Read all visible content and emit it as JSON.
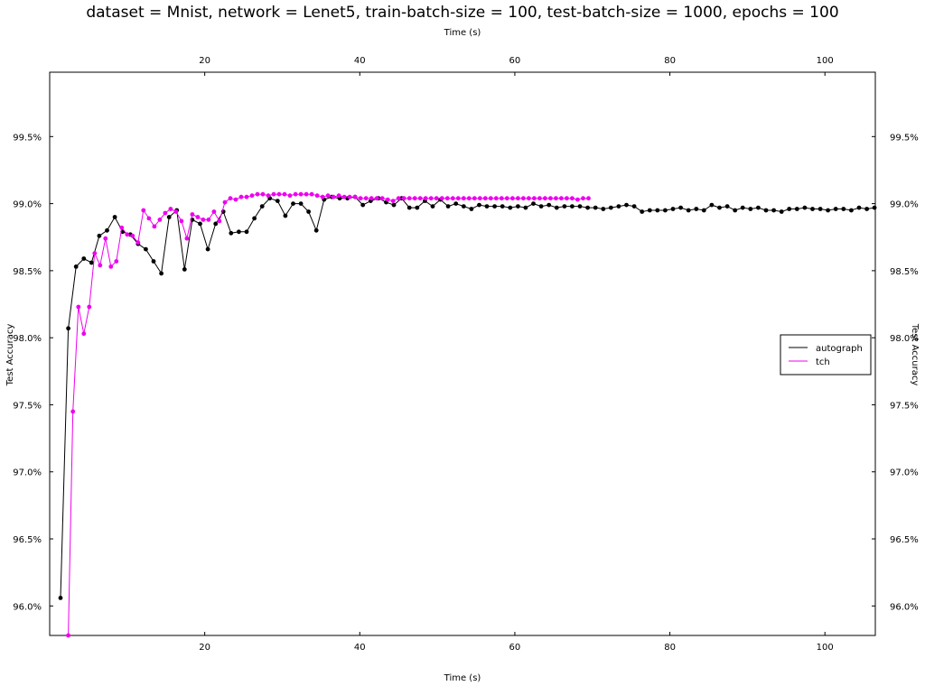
{
  "chart_data": {
    "type": "line",
    "title": "dataset = Mnist, network = Lenet5, train-batch-size = 100, test-batch-size = 1000, epochs = 100",
    "xlabel": "Time (s)",
    "ylabel": "Test Accuracy",
    "xlim": [
      0,
      106.5
    ],
    "ylim": [
      95.78,
      99.98
    ],
    "x_ticks": [
      20,
      40,
      60,
      80,
      100
    ],
    "y_ticks": [
      96.0,
      96.5,
      97.0,
      97.5,
      98.0,
      98.5,
      99.0,
      99.5
    ],
    "y_tick_labels": [
      "96.0%",
      "96.5%",
      "97.0%",
      "97.5%",
      "98.0%",
      "98.5%",
      "99.0%",
      "99.5%"
    ],
    "x_tick_labels": [
      "20",
      "40",
      "60",
      "80",
      "100"
    ],
    "grid": false,
    "legend_position": "right",
    "series": [
      {
        "name": "autograph",
        "color": "#000000",
        "x": [
          1.4,
          2.4,
          3.4,
          4.4,
          5.4,
          6.4,
          7.4,
          8.4,
          9.4,
          10.4,
          11.4,
          12.4,
          13.4,
          14.4,
          15.4,
          16.4,
          17.4,
          18.4,
          19.4,
          20.4,
          21.4,
          22.4,
          23.4,
          24.4,
          25.4,
          26.4,
          27.4,
          28.4,
          29.4,
          30.4,
          31.4,
          32.4,
          33.4,
          34.4,
          35.4,
          36.4,
          37.4,
          38.4,
          39.4,
          40.4,
          41.4,
          42.4,
          43.4,
          44.4,
          45.4,
          46.4,
          47.4,
          48.4,
          49.4,
          50.4,
          51.4,
          52.4,
          53.4,
          54.4,
          55.4,
          56.4,
          57.4,
          58.4,
          59.4,
          60.4,
          61.4,
          62.4,
          63.4,
          64.4,
          65.4,
          66.4,
          67.4,
          68.4,
          69.4,
          70.4,
          71.4,
          72.4,
          73.4,
          74.4,
          75.4,
          76.4,
          77.4,
          78.4,
          79.4,
          80.4,
          81.4,
          82.4,
          83.4,
          84.4,
          85.4,
          86.4,
          87.4,
          88.4,
          89.4,
          90.4,
          91.4,
          92.4,
          93.4,
          94.4,
          95.4,
          96.4,
          97.4,
          98.4,
          99.4,
          100.4,
          101.4,
          102.4,
          103.4,
          104.4,
          105.4,
          106.4
        ],
        "y": [
          96.06,
          98.07,
          98.53,
          98.59,
          98.56,
          98.76,
          98.8,
          98.9,
          98.79,
          98.77,
          98.7,
          98.66,
          98.57,
          98.48,
          98.9,
          98.95,
          98.51,
          98.88,
          98.85,
          98.66,
          98.85,
          98.94,
          98.78,
          98.79,
          98.79,
          98.89,
          98.98,
          99.04,
          99.02,
          98.91,
          99.0,
          99.0,
          98.94,
          98.8,
          99.03,
          99.05,
          99.04,
          99.04,
          99.05,
          98.99,
          99.02,
          99.04,
          99.01,
          98.99,
          99.04,
          98.97,
          98.97,
          99.02,
          98.98,
          99.03,
          98.98,
          99.0,
          98.98,
          98.96,
          98.99,
          98.98,
          98.98,
          98.98,
          98.97,
          98.98,
          98.97,
          99.0,
          98.98,
          98.99,
          98.97,
          98.98,
          98.98,
          98.98,
          98.97,
          98.97,
          98.96,
          98.97,
          98.98,
          98.99,
          98.98,
          98.94,
          98.95,
          98.95,
          98.95,
          98.96,
          98.97,
          98.95,
          98.96,
          98.95,
          98.99,
          98.97,
          98.98,
          98.95,
          98.97,
          98.96,
          98.97,
          98.95,
          98.95,
          98.94,
          98.96,
          98.96,
          98.97,
          98.96,
          98.96,
          98.95,
          98.96,
          98.96,
          98.95,
          98.97,
          98.96,
          98.97
        ]
      },
      {
        "name": "tch",
        "color": "#ee00ee",
        "x": [
          2.4,
          3.0,
          3.7,
          4.4,
          5.1,
          5.8,
          6.5,
          7.2,
          7.9,
          8.6,
          9.3,
          10.0,
          10.7,
          11.4,
          12.1,
          12.8,
          13.5,
          14.2,
          14.9,
          15.6,
          16.3,
          17.0,
          17.7,
          18.4,
          19.1,
          19.8,
          20.5,
          21.2,
          21.9,
          22.6,
          23.3,
          24.0,
          24.7,
          25.4,
          26.1,
          26.8,
          27.5,
          28.2,
          28.9,
          29.6,
          30.3,
          31.0,
          31.7,
          32.4,
          33.1,
          33.8,
          34.5,
          35.2,
          35.9,
          36.6,
          37.3,
          38.0,
          38.7,
          39.4,
          40.1,
          40.8,
          41.5,
          42.2,
          42.9,
          43.6,
          44.3,
          45.0,
          45.7,
          46.4,
          47.1,
          47.8,
          48.5,
          49.2,
          49.9,
          50.6,
          51.3,
          52.0,
          52.7,
          53.4,
          54.1,
          54.8,
          55.5,
          56.2,
          56.9,
          57.6,
          58.3,
          59.0,
          59.7,
          60.4,
          61.1,
          61.8,
          62.5,
          63.2,
          63.9,
          64.6,
          65.3,
          66.0,
          66.7,
          67.4,
          68.1,
          68.8,
          69.5
        ],
        "y": [
          95.78,
          97.45,
          98.23,
          98.03,
          98.23,
          98.63,
          98.54,
          98.74,
          98.53,
          98.57,
          98.82,
          98.77,
          98.76,
          98.71,
          98.95,
          98.89,
          98.83,
          98.88,
          98.93,
          98.96,
          98.94,
          98.87,
          98.74,
          98.92,
          98.9,
          98.88,
          98.88,
          98.94,
          98.87,
          99.01,
          99.04,
          99.03,
          99.05,
          99.05,
          99.06,
          99.07,
          99.07,
          99.06,
          99.07,
          99.07,
          99.07,
          99.06,
          99.07,
          99.07,
          99.07,
          99.07,
          99.06,
          99.05,
          99.06,
          99.05,
          99.06,
          99.05,
          99.05,
          99.05,
          99.04,
          99.04,
          99.04,
          99.04,
          99.04,
          99.03,
          99.02,
          99.04,
          99.04,
          99.04,
          99.04,
          99.04,
          99.04,
          99.04,
          99.04,
          99.04,
          99.04,
          99.04,
          99.04,
          99.04,
          99.04,
          99.04,
          99.04,
          99.04,
          99.04,
          99.04,
          99.04,
          99.04,
          99.04,
          99.04,
          99.04,
          99.04,
          99.04,
          99.04,
          99.04,
          99.04,
          99.04,
          99.04,
          99.04,
          99.04,
          99.03,
          99.04,
          99.04
        ]
      }
    ]
  }
}
